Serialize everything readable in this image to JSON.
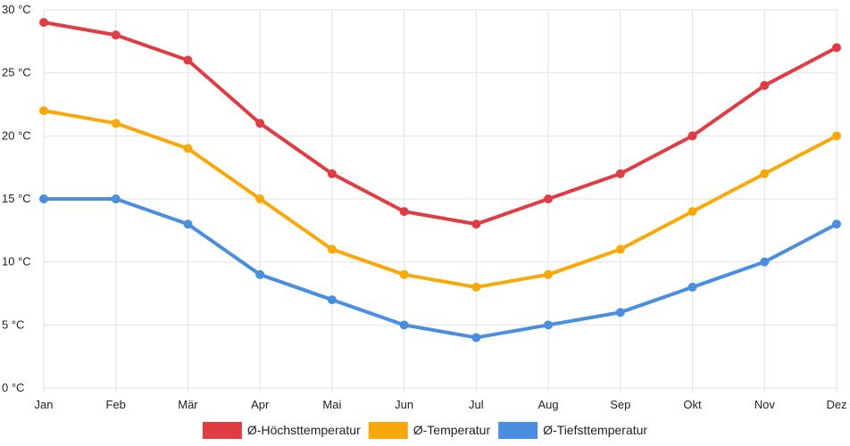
{
  "chart_data": {
    "type": "line",
    "categories": [
      "Jan",
      "Feb",
      "Mär",
      "Apr",
      "Mai",
      "Jun",
      "Jul",
      "Aug",
      "Sep",
      "Okt",
      "Nov",
      "Dez"
    ],
    "y_ticks": [
      {
        "value": 0,
        "label": "0 °C"
      },
      {
        "value": 5,
        "label": "5 °C"
      },
      {
        "value": 10,
        "label": "10 °C"
      },
      {
        "value": 15,
        "label": "15 °C"
      },
      {
        "value": 20,
        "label": "20 °C"
      },
      {
        "value": 25,
        "label": "25 °C"
      },
      {
        "value": 30,
        "label": "30 °C"
      }
    ],
    "ylim": [
      0,
      30
    ],
    "grid": true,
    "legend_position": "bottom",
    "series": [
      {
        "key": "max",
        "name": "Ø-Höchsttemperatur",
        "color": "#e03c44",
        "values": [
          29,
          28,
          26,
          21,
          17,
          14,
          13,
          15,
          17,
          20,
          24,
          27
        ]
      },
      {
        "key": "mean",
        "name": "Ø-Temperatur",
        "color": "#f9a80a",
        "values": [
          22,
          21,
          19,
          15,
          11,
          9,
          8,
          9,
          11,
          14,
          17,
          20
        ]
      },
      {
        "key": "min",
        "name": "Ø-Tiefsttemperatur",
        "color": "#4a8fdf",
        "values": [
          15,
          15,
          13,
          9,
          7,
          5,
          4,
          5,
          6,
          8,
          10,
          13
        ]
      }
    ]
  }
}
